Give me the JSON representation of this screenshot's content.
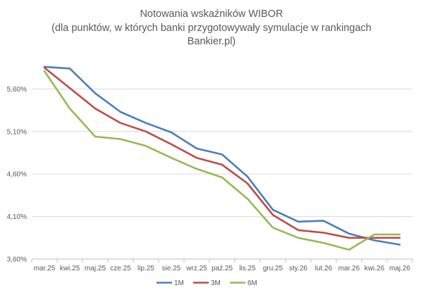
{
  "chart_data": {
    "type": "line",
    "title_lines": [
      "Notowania wskaźników WIBOR",
      "(dla punktów, w których banki przygotowywały symulacje w rankingach",
      "Bankier.pl)"
    ],
    "categories": [
      "mar.25",
      "kwi.25",
      "maj.25",
      "cze.25",
      "lip.25",
      "sie.25",
      "wrz.25",
      "paź.25",
      "lis.25",
      "gru.25",
      "sty.26",
      "lut.26",
      "mar.26",
      "kwi.26",
      "maj.26"
    ],
    "y_ticks": [
      "3,60%",
      "4,10%",
      "4,60%",
      "5,10%",
      "5,60%"
    ],
    "ylim": [
      3.6,
      6.0
    ],
    "grid": "horizontal",
    "legend_position": "bottom",
    "series": [
      {
        "name": "1M",
        "color": "#4a7ebb",
        "values": [
          5.86,
          5.84,
          5.55,
          5.33,
          5.2,
          5.09,
          4.9,
          4.83,
          4.57,
          4.18,
          4.04,
          4.05,
          3.9,
          3.82,
          3.77
        ]
      },
      {
        "name": "3M",
        "color": "#be4b48",
        "values": [
          5.85,
          5.61,
          5.37,
          5.2,
          5.1,
          4.95,
          4.79,
          4.71,
          4.49,
          4.12,
          3.94,
          3.91,
          3.85,
          3.85,
          3.85
        ]
      },
      {
        "name": "6M",
        "color": "#98b954",
        "values": [
          5.81,
          5.37,
          5.04,
          5.01,
          4.93,
          4.79,
          4.66,
          4.56,
          4.31,
          3.97,
          3.85,
          3.79,
          3.71,
          3.89,
          3.89
        ]
      }
    ]
  }
}
